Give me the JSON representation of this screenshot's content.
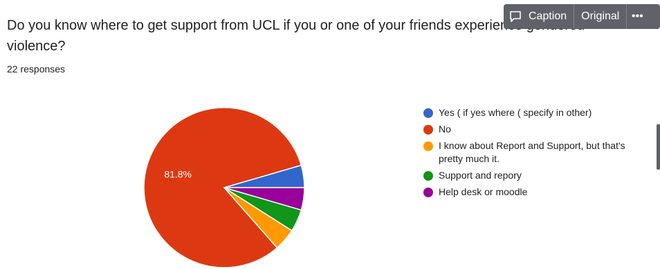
{
  "question": "Do you know where to get support from UCL if you or one of your friends experience gendered violence?",
  "responses": "22 responses",
  "toolbar": {
    "caption_label": "Caption",
    "original_label": "Original",
    "more_label": "•••"
  },
  "chart_data": {
    "type": "pie",
    "categories": [
      "Yes ( if yes where ( specify in other)",
      "No",
      "I know about Report and Support, but that's pretty much it.",
      "Support and repory",
      "Help desk or moodle"
    ],
    "values": [
      4.5,
      81.8,
      4.5,
      4.5,
      4.5
    ],
    "colors": [
      "#3366cc",
      "#dc3912",
      "#ff9900",
      "#109618",
      "#990099"
    ],
    "slice_labels": [
      "",
      "81.8%",
      "",
      "",
      ""
    ],
    "legend_position": "right"
  }
}
